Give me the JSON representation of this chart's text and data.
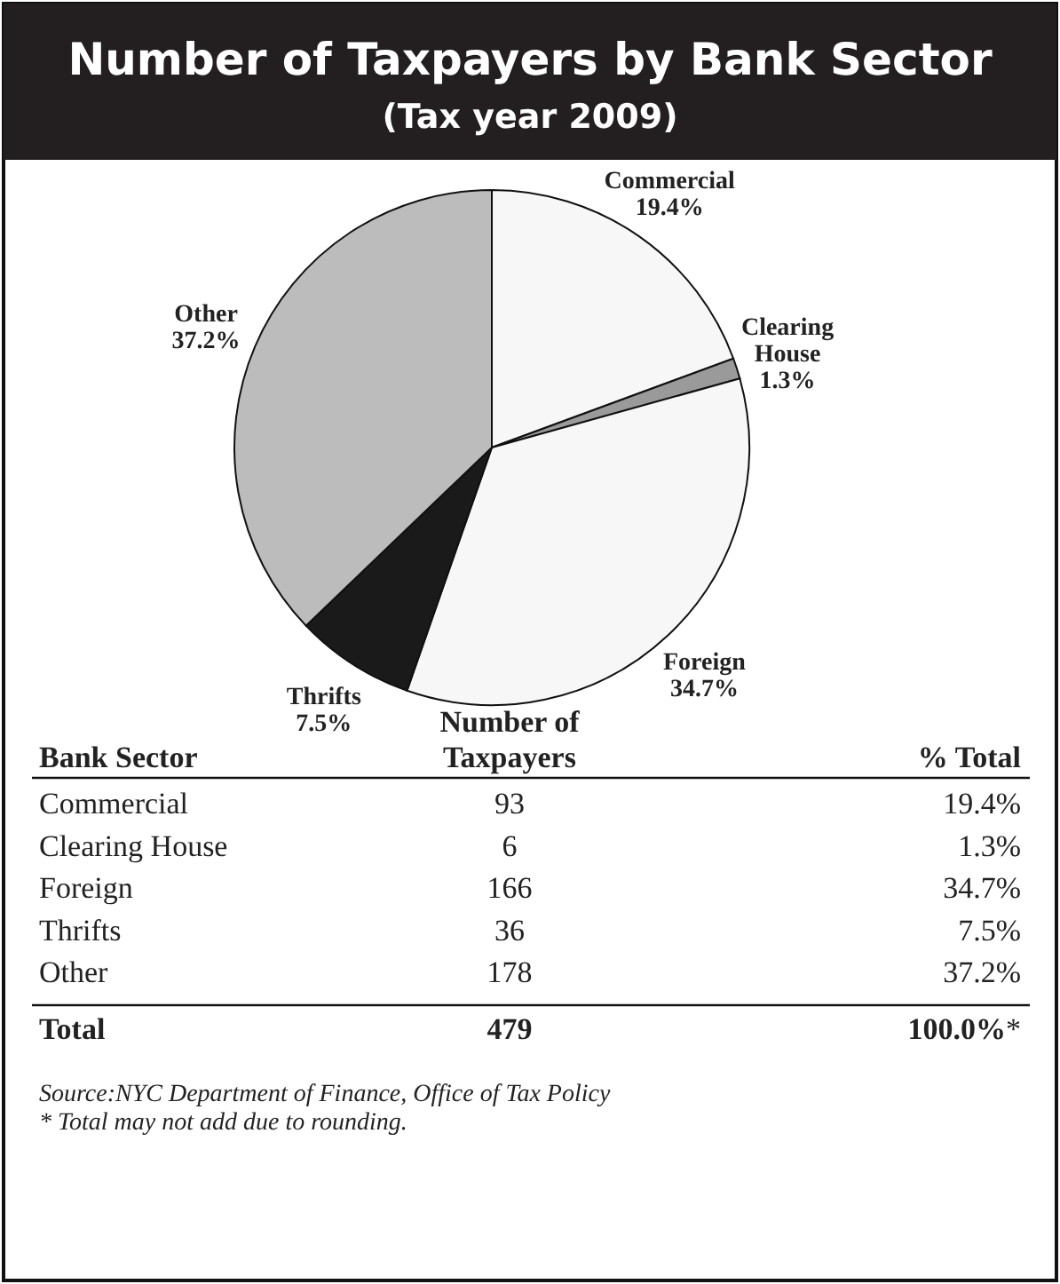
{
  "chart_data": [
    {
      "type": "pie",
      "title": "Number of Taxpayers by Bank Sector",
      "subtitle": "(Tax year 2009)",
      "categories": [
        "Commercial",
        "Clearing House",
        "Foreign",
        "Thrifts",
        "Other"
      ],
      "values": [
        19.4,
        1.3,
        34.7,
        7.5,
        37.2
      ],
      "value_labels": [
        "19.4%",
        "1.3%",
        "34.7%",
        "7.5%",
        "37.2%"
      ],
      "colors": [
        "#f7f7f7",
        "#9a9a9a",
        "#f7f7f7",
        "#1a1a1a",
        "#bcbcbc"
      ]
    },
    {
      "type": "other",
      "categories": [
        "Commercial",
        "Clearing House",
        "Foreign",
        "Thrifts",
        "Other"
      ],
      "series": [
        {
          "name": "Number of Taxpayers",
          "values": [
            93,
            6,
            166,
            36,
            178
          ]
        },
        {
          "name": "% Total",
          "values": [
            19.4,
            1.3,
            34.7,
            7.5,
            37.2
          ],
          "value_labels": [
            "19.4%",
            "1.3%",
            "34.7%",
            "7.5%",
            "37.2%"
          ]
        }
      ],
      "data_labels": true,
      "totals": [
        "479",
        "100.0%*"
      ],
      "annotations": [
        "Bank Sector",
        "Total",
        "Source:NYC Department of Finance, Office of Tax Policy",
        "* Total may not add due to rounding."
      ]
    }
  ]
}
